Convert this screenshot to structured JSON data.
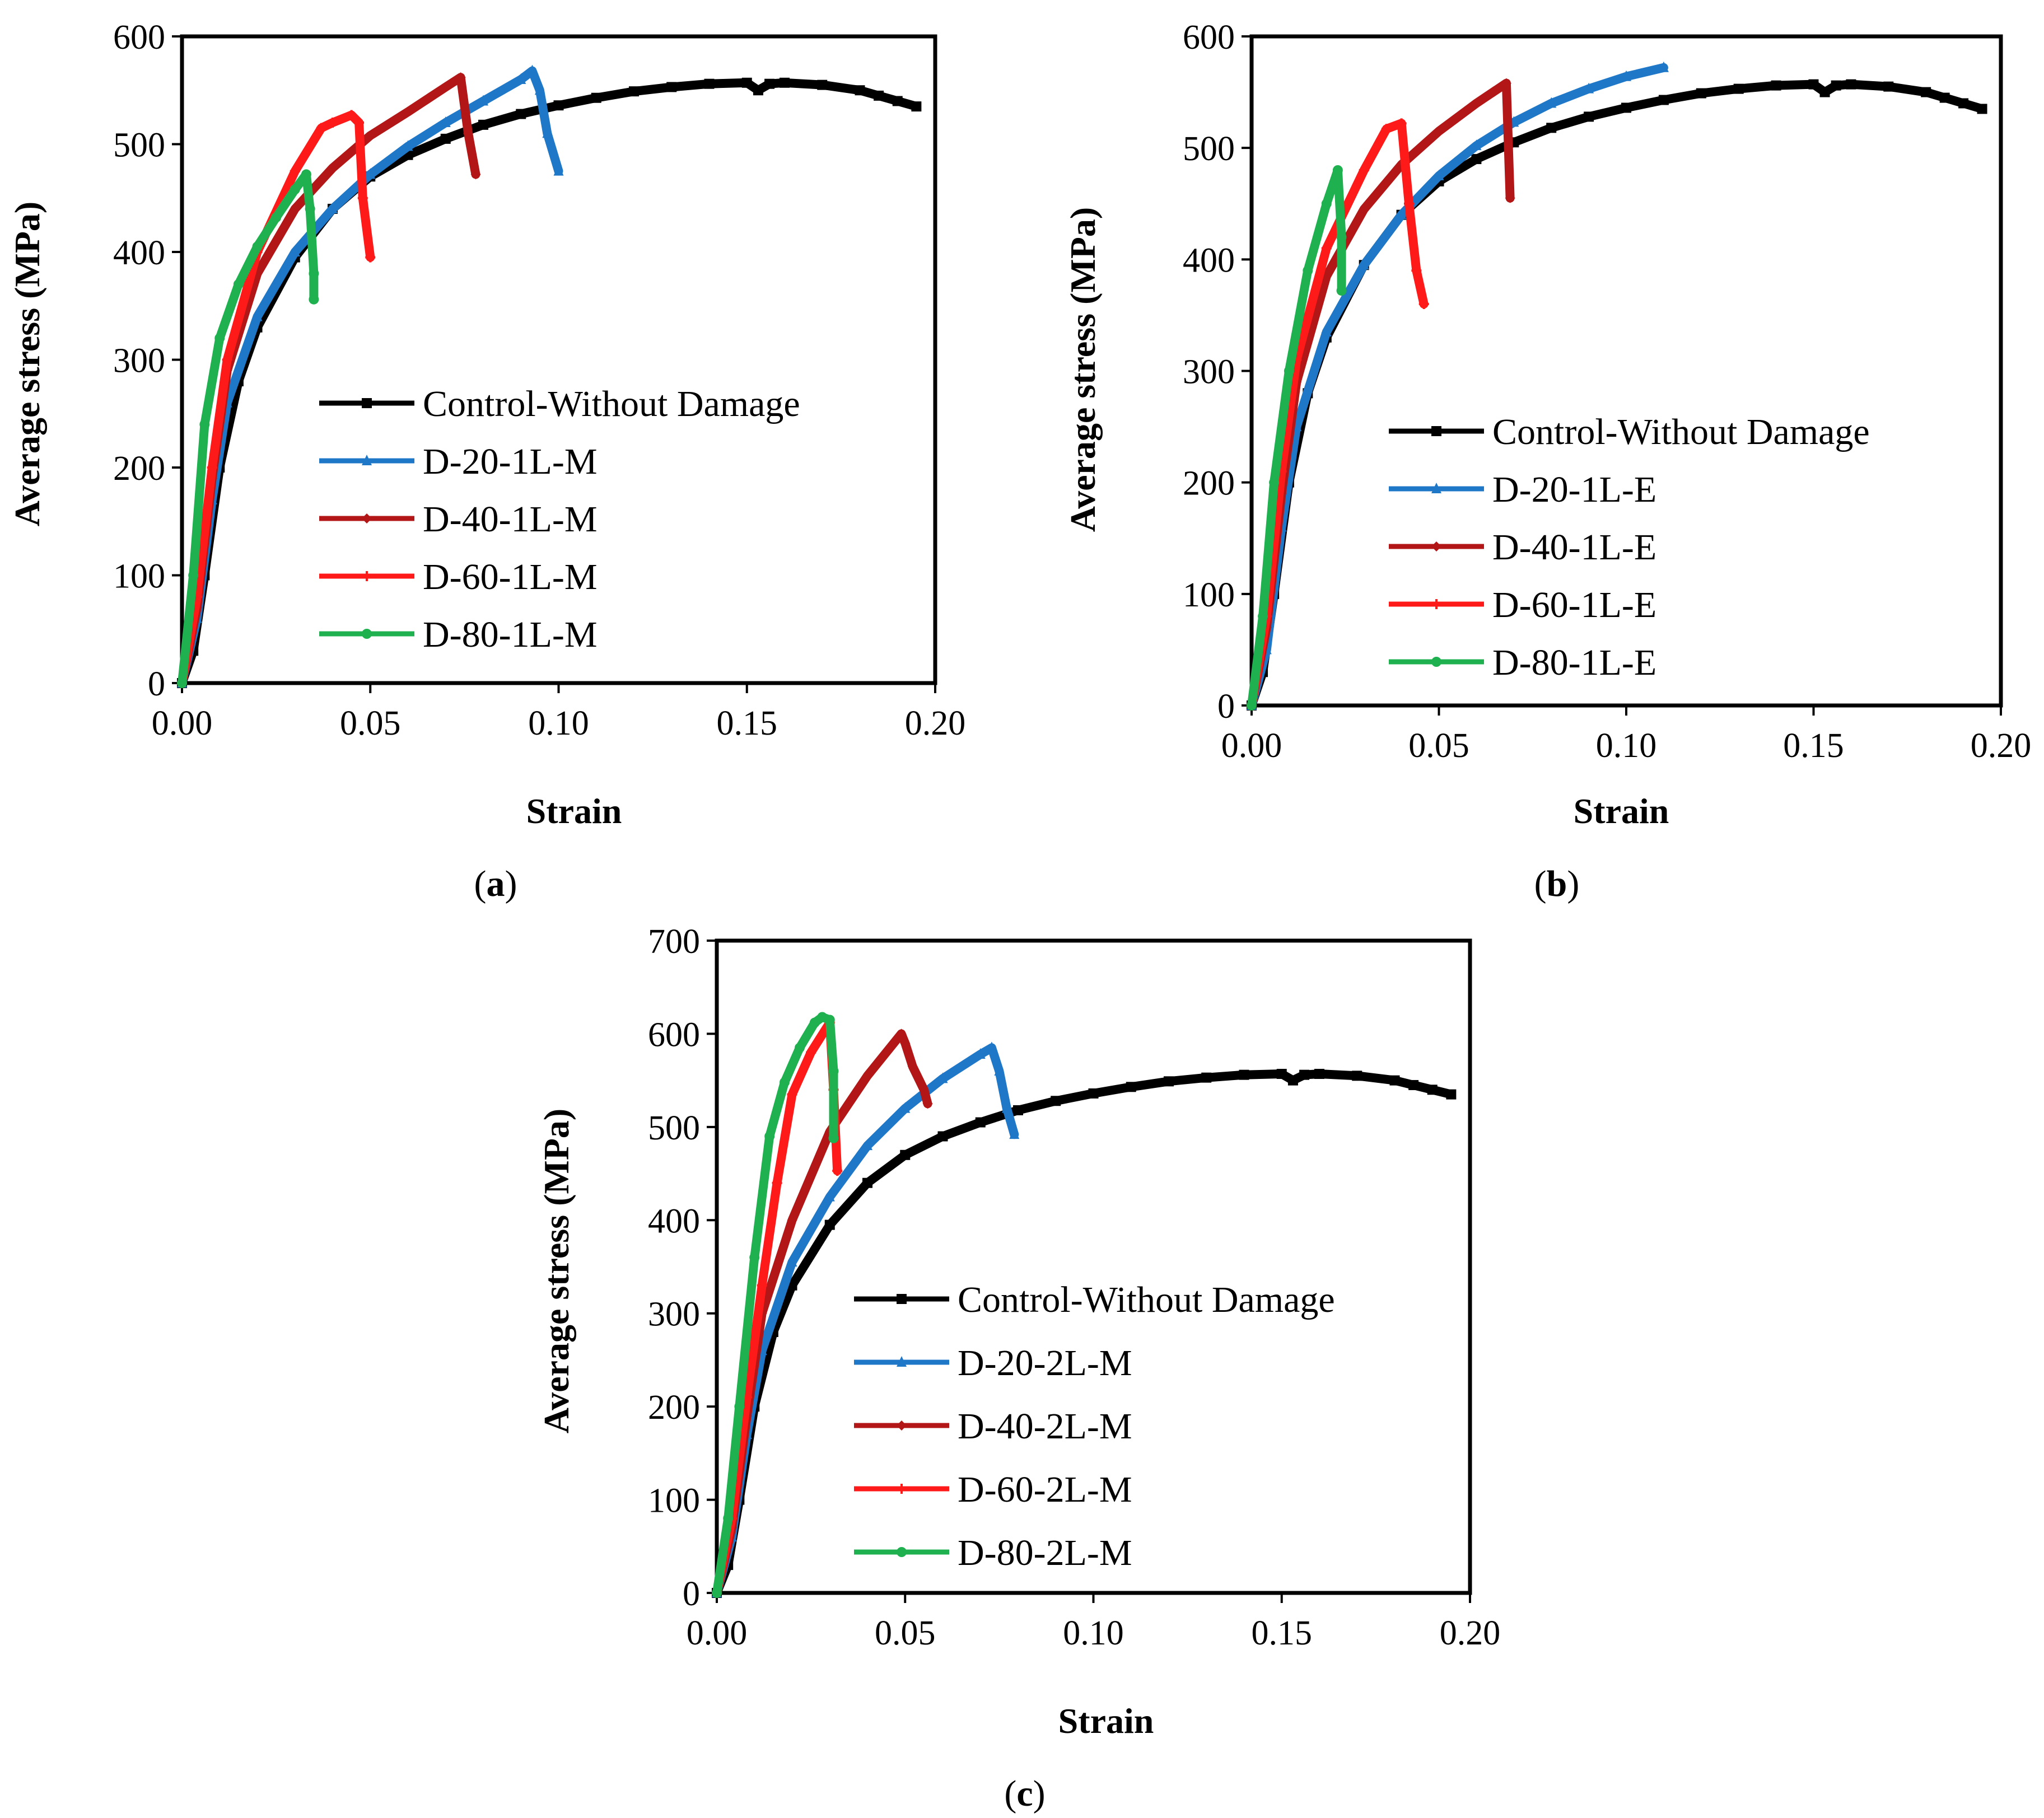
{
  "figure": {
    "background": "#ffffff",
    "series_colors": {
      "control": "#000000",
      "d20": "#1f77c8",
      "d40": "#b21616",
      "d60": "#ff1a1a",
      "d80": "#1fb050"
    },
    "marker_shapes": [
      "square",
      "triangle",
      "diamond",
      "plus",
      "circle"
    ]
  },
  "chart_data": [
    {
      "type": "line",
      "panel_label": "a",
      "xlabel": "Strain",
      "ylabel": "Average stress (MPa)",
      "xlim": [
        0,
        0.2
      ],
      "ylim": [
        0,
        600
      ],
      "xticks": [
        "0.00",
        "0.05",
        "0.10",
        "0.15",
        "0.20"
      ],
      "yticks": [
        "0",
        "100",
        "200",
        "300",
        "400",
        "500",
        "600"
      ],
      "grid": false,
      "legend_position": "center-right",
      "series": [
        {
          "name": "Control-Without Damage",
          "color": "#000000",
          "marker": "square",
          "x": [
            0,
            0.003,
            0.006,
            0.01,
            0.015,
            0.02,
            0.03,
            0.04,
            0.05,
            0.06,
            0.07,
            0.08,
            0.09,
            0.1,
            0.11,
            0.12,
            0.13,
            0.14,
            0.15,
            0.153,
            0.156,
            0.16,
            0.17,
            0.18,
            0.185,
            0.19,
            0.195
          ],
          "y": [
            0,
            30,
            100,
            200,
            280,
            330,
            395,
            440,
            470,
            490,
            505,
            518,
            528,
            536,
            543,
            549,
            553,
            556,
            557,
            550,
            556,
            557,
            555,
            550,
            545,
            540,
            535
          ]
        },
        {
          "name": "D-20-1L-M",
          "color": "#1f77c8",
          "marker": "triangle",
          "x": [
            0,
            0.004,
            0.008,
            0.012,
            0.02,
            0.03,
            0.04,
            0.05,
            0.06,
            0.07,
            0.08,
            0.09,
            0.093,
            0.095,
            0.097,
            0.1
          ],
          "y": [
            0,
            60,
            170,
            260,
            340,
            400,
            440,
            472,
            498,
            520,
            540,
            560,
            568,
            550,
            510,
            475
          ]
        },
        {
          "name": "D-40-1L-M",
          "color": "#b21616",
          "marker": "diamond",
          "x": [
            0,
            0.004,
            0.008,
            0.012,
            0.02,
            0.03,
            0.04,
            0.05,
            0.06,
            0.07,
            0.074,
            0.076,
            0.078
          ],
          "y": [
            0,
            70,
            190,
            290,
            380,
            440,
            478,
            508,
            530,
            553,
            562,
            510,
            472
          ]
        },
        {
          "name": "D-60-1L-M",
          "color": "#ff1a1a",
          "marker": "plus",
          "x": [
            0,
            0.004,
            0.008,
            0.012,
            0.02,
            0.03,
            0.037,
            0.04,
            0.045,
            0.047,
            0.048,
            0.05
          ],
          "y": [
            0,
            80,
            200,
            300,
            400,
            475,
            515,
            520,
            527,
            520,
            450,
            395
          ]
        },
        {
          "name": "D-80-1L-M",
          "color": "#1fb050",
          "marker": "circle",
          "x": [
            0,
            0.003,
            0.006,
            0.01,
            0.015,
            0.02,
            0.025,
            0.03,
            0.033,
            0.034,
            0.035,
            0.035
          ],
          "y": [
            0,
            100,
            240,
            320,
            370,
            405,
            432,
            458,
            472,
            440,
            380,
            356
          ]
        }
      ]
    },
    {
      "type": "line",
      "panel_label": "b",
      "xlabel": "Strain",
      "ylabel": "Average stress (MPa)",
      "xlim": [
        0,
        0.2
      ],
      "ylim": [
        0,
        600
      ],
      "xticks": [
        "0.00",
        "0.05",
        "0.10",
        "0.15",
        "0.20"
      ],
      "yticks": [
        "0",
        "100",
        "200",
        "300",
        "400",
        "500",
        "600"
      ],
      "grid": false,
      "legend_position": "center-right",
      "series": [
        {
          "name": "Control-Without Damage",
          "color": "#000000",
          "marker": "square",
          "x": [
            0,
            0.003,
            0.006,
            0.01,
            0.015,
            0.02,
            0.03,
            0.04,
            0.05,
            0.06,
            0.07,
            0.08,
            0.09,
            0.1,
            0.11,
            0.12,
            0.13,
            0.14,
            0.15,
            0.153,
            0.156,
            0.16,
            0.17,
            0.18,
            0.185,
            0.19,
            0.195
          ],
          "y": [
            0,
            30,
            100,
            200,
            280,
            330,
            395,
            440,
            470,
            490,
            505,
            518,
            528,
            536,
            543,
            549,
            553,
            556,
            557,
            550,
            556,
            557,
            555,
            550,
            545,
            540,
            535
          ]
        },
        {
          "name": "D-20-1L-E",
          "color": "#1f77c8",
          "marker": "triangle",
          "x": [
            0,
            0.004,
            0.008,
            0.012,
            0.02,
            0.03,
            0.04,
            0.05,
            0.06,
            0.07,
            0.08,
            0.09,
            0.1,
            0.11
          ],
          "y": [
            0,
            50,
            160,
            250,
            335,
            395,
            440,
            475,
            502,
            523,
            540,
            553,
            564,
            572
          ]
        },
        {
          "name": "D-40-1L-E",
          "color": "#b21616",
          "marker": "diamond",
          "x": [
            0,
            0.004,
            0.008,
            0.012,
            0.02,
            0.03,
            0.04,
            0.05,
            0.06,
            0.068,
            0.069
          ],
          "y": [
            0,
            70,
            190,
            290,
            385,
            445,
            485,
            515,
            540,
            558,
            455
          ]
        },
        {
          "name": "D-60-1L-E",
          "color": "#ff1a1a",
          "marker": "plus",
          "x": [
            0,
            0.004,
            0.008,
            0.012,
            0.02,
            0.03,
            0.036,
            0.04,
            0.042,
            0.044,
            0.046
          ],
          "y": [
            0,
            80,
            210,
            310,
            410,
            480,
            517,
            522,
            450,
            390,
            360
          ]
        },
        {
          "name": "D-80-1L-E",
          "color": "#1fb050",
          "marker": "circle",
          "x": [
            0,
            0.003,
            0.006,
            0.01,
            0.015,
            0.02,
            0.023,
            0.024,
            0.024
          ],
          "y": [
            0,
            80,
            200,
            300,
            390,
            450,
            480,
            420,
            372
          ]
        }
      ]
    },
    {
      "type": "line",
      "panel_label": "c",
      "xlabel": "Strain",
      "ylabel": "Average stress (MPa)",
      "xlim": [
        0,
        0.2
      ],
      "ylim": [
        0,
        700
      ],
      "xticks": [
        "0.00",
        "0.05",
        "0.10",
        "0.15",
        "0.20"
      ],
      "yticks": [
        "0",
        "100",
        "200",
        "300",
        "400",
        "500",
        "600",
        "700"
      ],
      "grid": false,
      "legend_position": "center-right",
      "series": [
        {
          "name": "Control-Without Damage",
          "color": "#000000",
          "marker": "square",
          "x": [
            0,
            0.003,
            0.006,
            0.01,
            0.015,
            0.02,
            0.03,
            0.04,
            0.05,
            0.06,
            0.07,
            0.08,
            0.09,
            0.1,
            0.11,
            0.12,
            0.13,
            0.14,
            0.15,
            0.153,
            0.156,
            0.16,
            0.17,
            0.18,
            0.185,
            0.19,
            0.195
          ],
          "y": [
            0,
            30,
            100,
            200,
            280,
            330,
            395,
            440,
            470,
            490,
            505,
            518,
            528,
            536,
            543,
            549,
            553,
            556,
            557,
            550,
            556,
            557,
            555,
            550,
            545,
            540,
            535
          ]
        },
        {
          "name": "D-20-2L-M",
          "color": "#1f77c8",
          "marker": "triangle",
          "x": [
            0,
            0.004,
            0.008,
            0.012,
            0.02,
            0.03,
            0.04,
            0.05,
            0.06,
            0.07,
            0.073,
            0.075,
            0.077,
            0.079
          ],
          "y": [
            0,
            60,
            170,
            260,
            355,
            425,
            480,
            520,
            552,
            578,
            585,
            560,
            520,
            492
          ]
        },
        {
          "name": "D-40-2L-M",
          "color": "#b21616",
          "marker": "diamond",
          "x": [
            0,
            0.004,
            0.008,
            0.012,
            0.02,
            0.03,
            0.04,
            0.049,
            0.05,
            0.052,
            0.055,
            0.056
          ],
          "y": [
            0,
            70,
            190,
            300,
            400,
            495,
            555,
            600,
            590,
            565,
            540,
            525
          ]
        },
        {
          "name": "D-60-2L-M",
          "color": "#ff1a1a",
          "marker": "plus",
          "x": [
            0,
            0.004,
            0.008,
            0.012,
            0.016,
            0.02,
            0.025,
            0.03,
            0.031,
            0.032
          ],
          "y": [
            0,
            80,
            210,
            330,
            440,
            535,
            580,
            612,
            540,
            453
          ]
        },
        {
          "name": "D-80-2L-M",
          "color": "#1fb050",
          "marker": "circle",
          "x": [
            0,
            0.003,
            0.006,
            0.01,
            0.014,
            0.018,
            0.022,
            0.026,
            0.028,
            0.03,
            0.031,
            0.031
          ],
          "y": [
            0,
            80,
            200,
            360,
            490,
            548,
            585,
            612,
            618,
            615,
            560,
            488
          ]
        }
      ]
    }
  ]
}
